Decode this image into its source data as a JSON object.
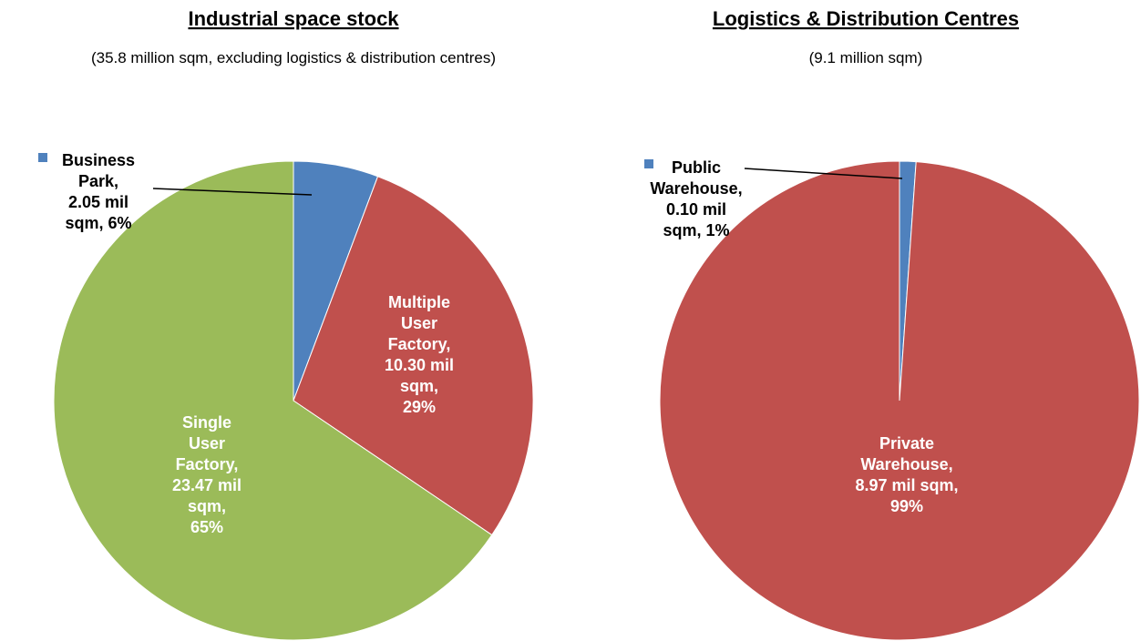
{
  "chart_data": [
    {
      "type": "pie",
      "title": "Industrial space stock",
      "subtitle": "(35.8 million sqm, excluding logistics & distribution centres)",
      "values": [
        2.05,
        10.3,
        23.47
      ],
      "value_labels": [
        [
          "Business",
          "Park,",
          "2.05 mil",
          "sqm, 6%"
        ],
        [
          "Multiple",
          "User",
          "Factory,",
          "10.30 mil",
          "sqm,",
          "29%"
        ],
        [
          "Single",
          "User",
          "Factory,",
          "23.47 mil",
          "sqm,",
          "65%"
        ]
      ],
      "colors": [
        "#4f81bd",
        "#c0504d",
        "#9bbb59"
      ]
    },
    {
      "type": "pie",
      "title": "Logistics & Distribution Centres",
      "subtitle": "(9.1 million sqm)",
      "values": [
        0.1,
        8.97
      ],
      "value_labels": [
        [
          "Public",
          "Warehouse,",
          "0.10 mil",
          "sqm, 1%"
        ],
        [
          "Private",
          "Warehouse,",
          "8.97 mil sqm,",
          "99%"
        ]
      ],
      "colors": [
        "#4f81bd",
        "#c0504d"
      ]
    }
  ]
}
